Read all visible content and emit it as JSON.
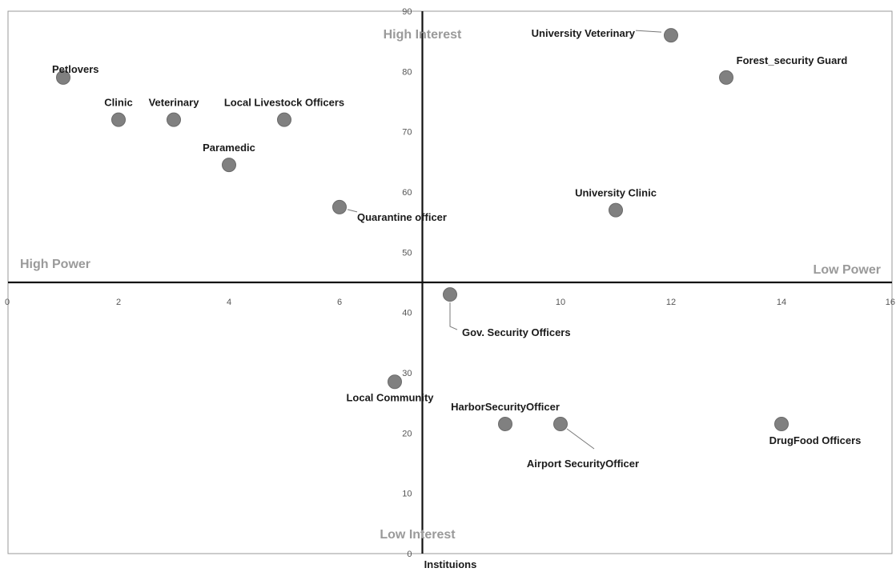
{
  "chart_data": {
    "type": "scatter",
    "title": "",
    "xlabel": "Instituions",
    "ylabel": "",
    "xlim": [
      0,
      16
    ],
    "ylim": [
      0,
      90
    ],
    "x_ticks": [
      0,
      2,
      4,
      6,
      10,
      12,
      14,
      16
    ],
    "y_ticks": [
      10,
      20,
      30,
      40,
      50,
      60,
      70,
      80,
      90
    ],
    "axis_cross": {
      "x": 7.5,
      "y": 45
    },
    "grid": false,
    "legend": "none",
    "marker_color": "#808080",
    "points": [
      {
        "label": "Petlovers",
        "x": 1,
        "y": 79
      },
      {
        "label": "Clinic",
        "x": 2,
        "y": 72
      },
      {
        "label": "Veterinary",
        "x": 3,
        "y": 72
      },
      {
        "label": "Local Livestock Officers",
        "x": 5,
        "y": 72
      },
      {
        "label": "Paramedic",
        "x": 4,
        "y": 64.5
      },
      {
        "label": "Quarantine officer",
        "x": 6,
        "y": 57.5
      },
      {
        "label": "University Veterinary",
        "x": 12,
        "y": 86
      },
      {
        "label": "Forest_security Guard",
        "x": 13,
        "y": 79
      },
      {
        "label": "University Clinic",
        "x": 11,
        "y": 57
      },
      {
        "label": "Gov. Security Officers",
        "x": 8,
        "y": 43
      },
      {
        "label": "Local Community",
        "x": 7,
        "y": 28.5
      },
      {
        "label": "HarborSecurityOfficer",
        "x": 9,
        "y": 21.5
      },
      {
        "label": "Airport SecurityOfficer",
        "x": 10,
        "y": 21.5
      },
      {
        "label": "DrugFood Officers",
        "x": 14,
        "y": 21.5
      }
    ],
    "quadrant_labels": {
      "top": "High Interest",
      "bottom": "Low Interest",
      "left": "High Power",
      "right": "Low Power"
    }
  }
}
